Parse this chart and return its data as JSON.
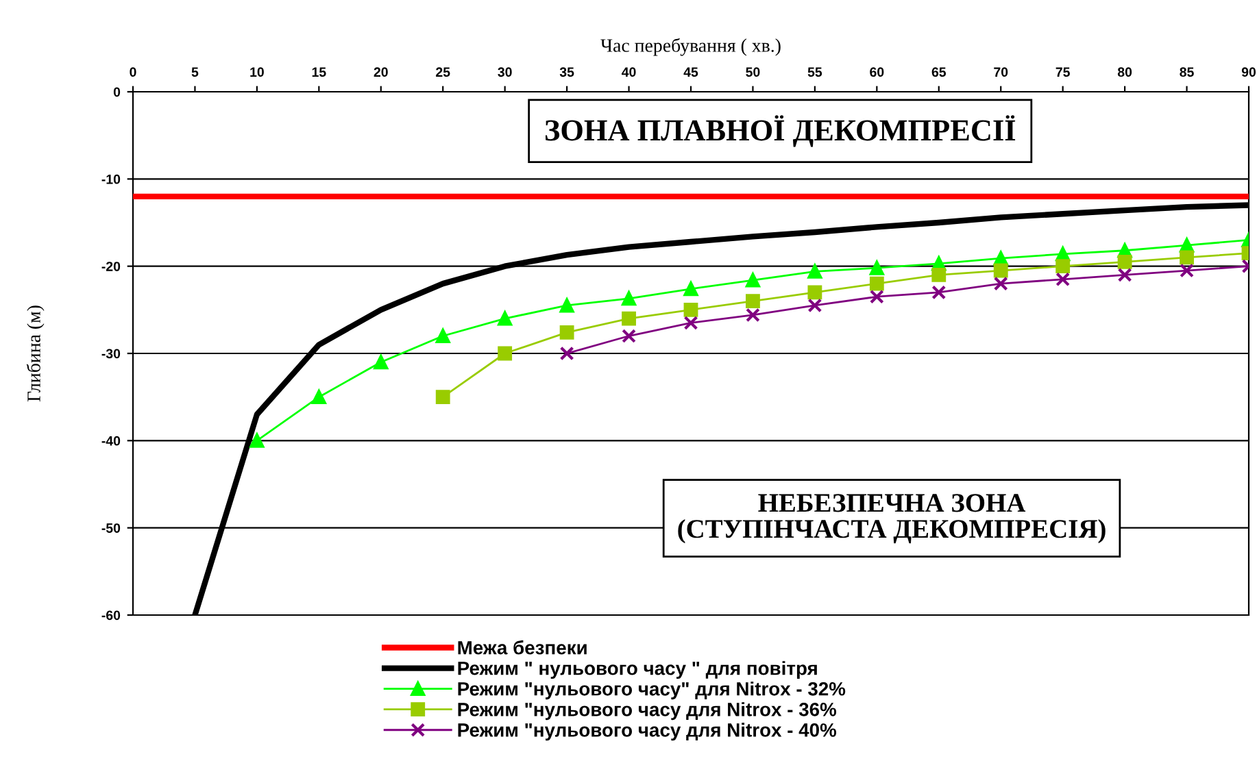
{
  "chart_data": {
    "type": "line",
    "xlabel": "Час перебування ( хв.)",
    "ylabel": "Глибина (м)",
    "xlim": [
      0,
      90
    ],
    "xticks": [
      0,
      5,
      10,
      15,
      20,
      25,
      30,
      35,
      40,
      45,
      50,
      55,
      60,
      65,
      70,
      75,
      80,
      85,
      90
    ],
    "ylim": [
      -60,
      0
    ],
    "yticks": [
      -60,
      -50,
      -40,
      -30,
      -20,
      -10,
      0
    ],
    "grid": "y",
    "legend": "bottom",
    "ref_lines": [
      {
        "axis": "y",
        "value": -12,
        "label": "Межа безпеки",
        "color": "#ff0000",
        "line_style": "solid"
      }
    ],
    "annotations": [
      "ЗОНА ПЛАВНОЇ ДЕКОМПРЕСІЇ",
      "НЕБЕЗПЕЧНА ЗОНА\n(СТУПІНЧАСТА ДЕКОМПРЕСІЯ)"
    ],
    "series": [
      {
        "name": "Режим \" нульового часу \" для повітря",
        "color": "#000000",
        "marker": "none",
        "x": [
          5,
          10,
          15,
          20,
          25,
          30,
          35,
          40,
          45,
          50,
          55,
          60,
          65,
          70,
          75,
          80,
          85,
          90
        ],
        "values": [
          -60,
          -37,
          -29,
          -25,
          -22,
          -20,
          -18.7,
          -17.8,
          -17.2,
          -16.6,
          -16.1,
          -15.5,
          -15,
          -14.4,
          -14,
          -13.6,
          -13.2,
          -13
        ]
      },
      {
        "name": "Режим \"нульового часу\" для Nitrox - 32%",
        "color": "#00ff00",
        "marker": "triangle",
        "x": [
          10,
          15,
          20,
          25,
          30,
          35,
          40,
          45,
          50,
          55,
          60,
          65,
          70,
          75,
          80,
          85,
          90
        ],
        "values": [
          -40,
          -35,
          -31,
          -28,
          -26,
          -24.5,
          -23.7,
          -22.6,
          -21.6,
          -20.6,
          -20.2,
          -19.7,
          -19.1,
          -18.6,
          -18.2,
          -17.6,
          -17
        ]
      },
      {
        "name": "Режим \"нульового часу для Nitrox - 36%",
        "color": "#99cc00",
        "marker": "square",
        "x": [
          25,
          30,
          35,
          40,
          45,
          50,
          55,
          60,
          65,
          70,
          75,
          80,
          85,
          90
        ],
        "values": [
          -35,
          -30,
          -27.6,
          -26,
          -25,
          -24,
          -23,
          -22,
          -21,
          -20.5,
          -20,
          -19.5,
          -19,
          -18.5
        ]
      },
      {
        "name": "Режим \"нульового часу для Nitrox - 40%",
        "color": "#800080",
        "marker": "cross",
        "x": [
          35,
          40,
          45,
          50,
          55,
          60,
          65,
          70,
          75,
          80,
          85,
          90
        ],
        "values": [
          -30,
          -28,
          -26.5,
          -25.6,
          -24.5,
          -23.5,
          -23,
          -22,
          -21.5,
          -21,
          -20.5,
          -20
        ]
      }
    ]
  }
}
